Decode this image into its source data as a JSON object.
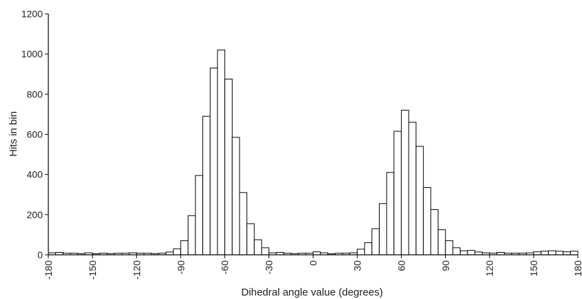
{
  "chart_data": {
    "type": "bar",
    "title": "",
    "xlabel": "Dihedral angle value (degrees)",
    "ylabel": "Hits in bin",
    "xlim": [
      -180,
      180
    ],
    "ylim": [
      0,
      1200
    ],
    "bin_width": 5,
    "grid": false,
    "legend": "none",
    "x_ticks": [
      "-180",
      "-150",
      "-120",
      "-90",
      "-60",
      "-30",
      "0",
      "30",
      "60",
      "90",
      "120",
      "150",
      "180"
    ],
    "y_ticks": [
      "0",
      "200",
      "400",
      "600",
      "800",
      "1000",
      "1200"
    ],
    "bin_starts": [
      -180,
      -175,
      -170,
      -165,
      -160,
      -155,
      -150,
      -145,
      -140,
      -135,
      -130,
      -125,
      -120,
      -115,
      -110,
      -105,
      -100,
      -95,
      -90,
      -85,
      -80,
      -75,
      -70,
      -65,
      -60,
      -55,
      -50,
      -45,
      -40,
      -35,
      -30,
      -25,
      -20,
      -15,
      -10,
      -5,
      0,
      5,
      10,
      15,
      20,
      25,
      30,
      35,
      40,
      45,
      50,
      55,
      60,
      65,
      70,
      75,
      80,
      85,
      90,
      95,
      100,
      105,
      110,
      115,
      120,
      125,
      130,
      135,
      140,
      145,
      150,
      155,
      160,
      165,
      170,
      175
    ],
    "values": [
      10,
      12,
      8,
      8,
      6,
      10,
      5,
      8,
      6,
      8,
      8,
      10,
      8,
      8,
      6,
      8,
      14,
      30,
      70,
      195,
      395,
      690,
      930,
      1020,
      875,
      585,
      310,
      155,
      75,
      35,
      10,
      12,
      8,
      6,
      8,
      8,
      15,
      10,
      5,
      8,
      8,
      10,
      28,
      60,
      130,
      255,
      410,
      615,
      720,
      660,
      540,
      335,
      225,
      125,
      70,
      35,
      20,
      22,
      14,
      10,
      8,
      12,
      8,
      8,
      8,
      10,
      15,
      18,
      20,
      18,
      15,
      18
    ],
    "colors": {
      "bar_fill": "#ffffff",
      "bar_stroke": "#000000",
      "axis": "#000000",
      "text": "#222222"
    }
  }
}
